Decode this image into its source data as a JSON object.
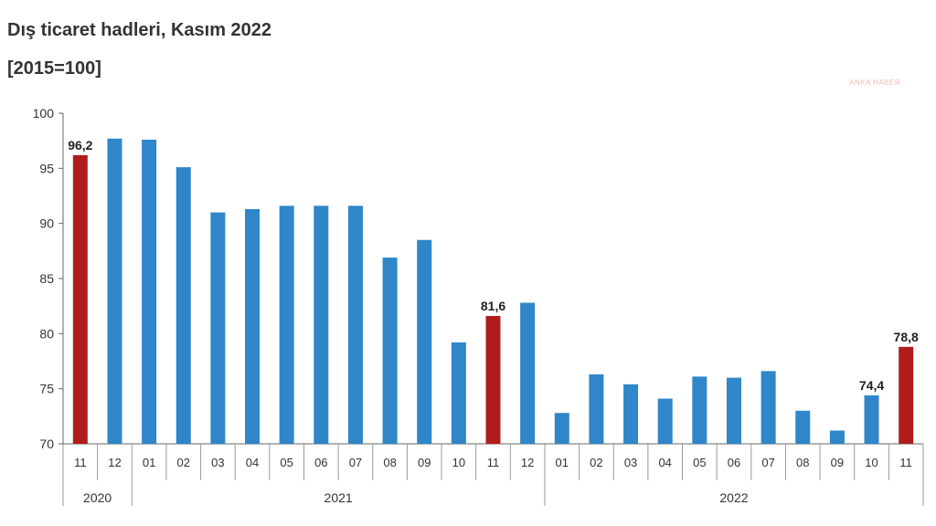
{
  "title": "Dış ticaret hadleri, Kasım 2022",
  "subtitle": "[2015=100]",
  "watermark": "ANKA HABER",
  "colors": {
    "bar": "#2f86c9",
    "highlight": "#b01c1c",
    "axis": "#666666"
  },
  "chart_data": {
    "type": "bar",
    "categories": [
      "11",
      "12",
      "01",
      "02",
      "03",
      "04",
      "05",
      "06",
      "07",
      "08",
      "09",
      "10",
      "11",
      "12",
      "01",
      "02",
      "03",
      "04",
      "05",
      "06",
      "07",
      "08",
      "09",
      "10",
      "11"
    ],
    "values": [
      96.2,
      97.7,
      97.6,
      95.1,
      91.0,
      91.3,
      91.6,
      91.6,
      91.6,
      86.9,
      88.5,
      79.2,
      81.6,
      82.8,
      72.8,
      76.3,
      75.4,
      74.1,
      76.1,
      76.0,
      76.6,
      73.0,
      71.2,
      74.4,
      78.8
    ],
    "highlight_indices": [
      0,
      12,
      24
    ],
    "data_labels": [
      {
        "index": 0,
        "text": "96,2"
      },
      {
        "index": 12,
        "text": "81,6"
      },
      {
        "index": 23,
        "text": "74,4"
      },
      {
        "index": 24,
        "text": "78,8"
      }
    ],
    "years": [
      {
        "label": "2020",
        "start": 0,
        "end": 1
      },
      {
        "label": "2021",
        "start": 2,
        "end": 13
      },
      {
        "label": "2022",
        "start": 14,
        "end": 24
      }
    ],
    "ylim": [
      70,
      100
    ],
    "yticks": [
      70,
      75,
      80,
      85,
      90,
      95,
      100
    ],
    "title": "Dış ticaret hadleri, Kasım 2022",
    "xlabel": "",
    "ylabel": ""
  }
}
